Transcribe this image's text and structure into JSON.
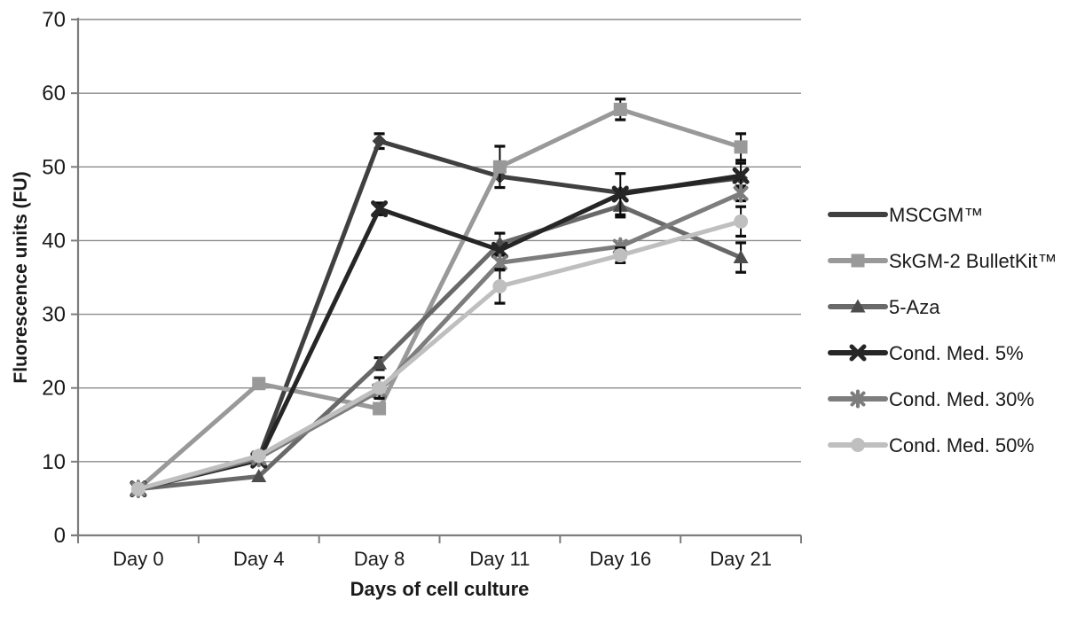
{
  "chart_data": {
    "type": "line",
    "title": "",
    "xlabel": "Days of cell culture",
    "ylabel": "Fluorescence units (FU)",
    "categories": [
      "Day 0",
      "Day 4",
      "Day 8",
      "Day 11",
      "Day 16",
      "Day 21"
    ],
    "ylim": [
      0,
      70
    ],
    "yticks": [
      0,
      10,
      20,
      30,
      40,
      50,
      60,
      70
    ],
    "grid": true,
    "legend_position": "right",
    "axis_color": "#7d7d7d",
    "grid_color": "#8c8c8c",
    "text_color": "#1a1a1a",
    "error_bar_color": "#0d0d0d",
    "series": [
      {
        "name": "MSCGM™",
        "color": "#404040",
        "marker": "diamond",
        "marker_color": "#404040",
        "legend_marker": "none",
        "values": [
          6.3,
          10.5,
          53.5,
          48.7,
          46.5,
          48.5
        ],
        "err": [
          0,
          0,
          1.0,
          0,
          0,
          0
        ]
      },
      {
        "name": "SkGM-2 BulletKit™",
        "color": "#999999",
        "marker": "square",
        "marker_color": "#999999",
        "legend_marker": "square",
        "values": [
          6.3,
          20.6,
          17.2,
          50.0,
          57.8,
          52.7
        ],
        "err": [
          0,
          0,
          0,
          2.8,
          1.4,
          1.8
        ]
      },
      {
        "name": "5-Aza",
        "color": "#696969",
        "marker": "triangle",
        "marker_color": "#4d4d4d",
        "legend_marker": "triangle",
        "values": [
          6.3,
          8.0,
          23.3,
          39.6,
          44.7,
          37.7
        ],
        "err": [
          0,
          0,
          0.8,
          1.4,
          1.5,
          2.0
        ]
      },
      {
        "name": "Cond. Med. 5%",
        "color": "#262626",
        "marker": "x",
        "marker_color": "#262626",
        "legend_marker": "x",
        "values": [
          6.3,
          10.2,
          44.3,
          38.7,
          46.3,
          48.8
        ],
        "err": [
          0,
          0,
          0.8,
          0,
          2.8,
          1.7
        ]
      },
      {
        "name": "Cond. Med. 30%",
        "color": "#7d7d7d",
        "marker": "asterisk",
        "marker_color": "#7d7d7d",
        "legend_marker": "asterisk",
        "values": [
          6.3,
          10.5,
          19.6,
          37.0,
          39.2,
          46.4
        ],
        "err": [
          0,
          0,
          0,
          1.0,
          0,
          1.0
        ]
      },
      {
        "name": "Cond. Med. 50%",
        "color": "#bfbfbf",
        "marker": "circle",
        "marker_color": "#bfbfbf",
        "legend_marker": "circle",
        "values": [
          6.3,
          10.8,
          20.0,
          33.8,
          38.0,
          42.6
        ],
        "err": [
          0,
          0,
          1.4,
          2.3,
          1.0,
          2.0
        ]
      }
    ]
  }
}
